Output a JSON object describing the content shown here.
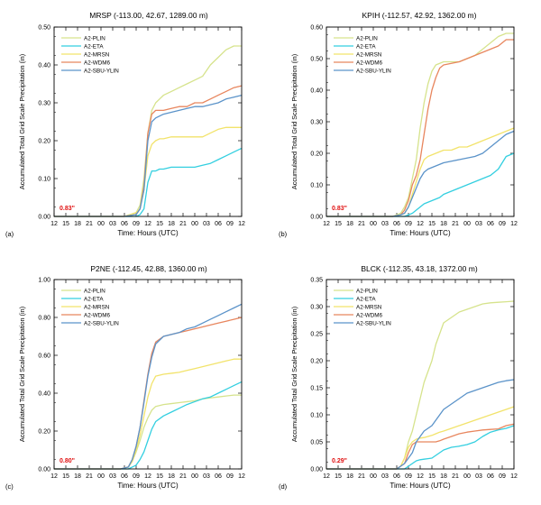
{
  "figure": {
    "xlabel": "Time: Hours (UTC)",
    "ylabel": "Accumulated Total Grid Scale Precipitation (in)",
    "x_tick_labels": [
      "12",
      "15",
      "18",
      "21",
      "00",
      "03",
      "06",
      "09",
      "12",
      "15",
      "18",
      "21",
      "00",
      "03",
      "06",
      "09",
      "12"
    ],
    "series_names": [
      "A2-PLIN",
      "A2-ETA",
      "A2-MRSN",
      "A2-WDM6",
      "A2-SBU-YLIN"
    ],
    "series_colors": [
      "#d6e38c",
      "#33cfe0",
      "#f2e36b",
      "#e8865e",
      "#5b93c9"
    ]
  },
  "chart_data": [
    {
      "type": "line",
      "panel_label": "(a)",
      "title": "MRSP (-113.00, 42.67, 1289.00 m)",
      "xlabel": "Time: Hours (UTC)",
      "ylabel": "Accumulated Total Grid Scale Precipitation (in)",
      "x": [
        0,
        6,
        12,
        18,
        21,
        22,
        23,
        24,
        25,
        26,
        27,
        28,
        30,
        32,
        34,
        36,
        38,
        40,
        42,
        44,
        46,
        48
      ],
      "ylim": [
        0,
        0.5
      ],
      "yticks": [
        "0.00",
        "0.10",
        "0.20",
        "0.30",
        "0.40",
        "0.50"
      ],
      "annotation": "0.83\"",
      "legend_position": "top-left",
      "series": [
        {
          "name": "A2-PLIN",
          "values": [
            0,
            0,
            0,
            0,
            0.01,
            0.03,
            0.1,
            0.22,
            0.28,
            0.3,
            0.31,
            0.32,
            0.33,
            0.34,
            0.35,
            0.36,
            0.37,
            0.4,
            0.42,
            0.44,
            0.45,
            0.45
          ]
        },
        {
          "name": "A2-ETA",
          "values": [
            0,
            0,
            0,
            0,
            0,
            0.005,
            0.02,
            0.09,
            0.12,
            0.12,
            0.125,
            0.125,
            0.13,
            0.13,
            0.13,
            0.13,
            0.135,
            0.14,
            0.15,
            0.16,
            0.17,
            0.18
          ]
        },
        {
          "name": "A2-MRSN",
          "values": [
            0,
            0,
            0,
            0,
            0.01,
            0.02,
            0.07,
            0.16,
            0.19,
            0.2,
            0.205,
            0.205,
            0.21,
            0.21,
            0.21,
            0.21,
            0.21,
            0.22,
            0.23,
            0.235,
            0.235,
            0.235
          ]
        },
        {
          "name": "A2-WDM6",
          "values": [
            0,
            0,
            0,
            0,
            0.005,
            0.02,
            0.08,
            0.22,
            0.27,
            0.28,
            0.28,
            0.28,
            0.285,
            0.29,
            0.29,
            0.3,
            0.3,
            0.31,
            0.32,
            0.33,
            0.34,
            0.345
          ]
        },
        {
          "name": "A2-SBU-YLIN",
          "values": [
            0,
            0,
            0,
            0,
            0.005,
            0.02,
            0.07,
            0.2,
            0.25,
            0.26,
            0.265,
            0.27,
            0.275,
            0.28,
            0.285,
            0.29,
            0.29,
            0.295,
            0.3,
            0.31,
            0.315,
            0.32
          ]
        }
      ]
    },
    {
      "type": "line",
      "panel_label": "(b)",
      "title": "KPIH (-112.57, 42.92, 1362.00 m)",
      "xlabel": "Time: Hours (UTC)",
      "ylabel": "Accumulated Total Grid Scale Precipitation (in)",
      "x": [
        0,
        6,
        12,
        17,
        19,
        20,
        21,
        22,
        23,
        24,
        25,
        26,
        27,
        28,
        29,
        30,
        32,
        34,
        36,
        38,
        40,
        42,
        44,
        46,
        48
      ],
      "ylim": [
        0,
        0.6
      ],
      "yticks": [
        "0.00",
        "0.10",
        "0.20",
        "0.30",
        "0.40",
        "0.50",
        "0.60"
      ],
      "annotation": "0.83\"",
      "legend_position": "top-left",
      "series": [
        {
          "name": "A2-PLIN",
          "values": [
            0,
            0,
            0,
            0,
            0.01,
            0.03,
            0.06,
            0.12,
            0.18,
            0.28,
            0.36,
            0.42,
            0.46,
            0.48,
            0.485,
            0.49,
            0.49,
            0.49,
            0.5,
            0.51,
            0.53,
            0.55,
            0.57,
            0.58,
            0.58
          ]
        },
        {
          "name": "A2-ETA",
          "values": [
            0,
            0,
            0,
            0,
            0,
            0,
            0.005,
            0.01,
            0.02,
            0.03,
            0.04,
            0.045,
            0.05,
            0.055,
            0.06,
            0.07,
            0.08,
            0.09,
            0.1,
            0.11,
            0.12,
            0.13,
            0.15,
            0.19,
            0.2
          ]
        },
        {
          "name": "A2-MRSN",
          "values": [
            0,
            0,
            0,
            0,
            0.005,
            0.01,
            0.03,
            0.07,
            0.11,
            0.15,
            0.18,
            0.19,
            0.195,
            0.2,
            0.205,
            0.21,
            0.21,
            0.22,
            0.22,
            0.23,
            0.24,
            0.25,
            0.26,
            0.27,
            0.28
          ]
        },
        {
          "name": "A2-WDM6",
          "values": [
            0,
            0,
            0,
            0,
            0.005,
            0.02,
            0.05,
            0.1,
            0.13,
            0.18,
            0.26,
            0.34,
            0.4,
            0.44,
            0.47,
            0.48,
            0.485,
            0.49,
            0.5,
            0.51,
            0.52,
            0.53,
            0.54,
            0.56,
            0.56
          ]
        },
        {
          "name": "A2-SBU-YLIN",
          "values": [
            0,
            0,
            0,
            0,
            0.005,
            0.01,
            0.03,
            0.06,
            0.09,
            0.12,
            0.14,
            0.15,
            0.155,
            0.16,
            0.165,
            0.17,
            0.175,
            0.18,
            0.185,
            0.19,
            0.2,
            0.22,
            0.24,
            0.26,
            0.27
          ]
        }
      ]
    },
    {
      "type": "line",
      "panel_label": "(c)",
      "title": "P2NE (-112.45, 42.88, 1360.00 m)",
      "xlabel": "Time: Hours (UTC)",
      "ylabel": "Accumulated Total Grid Scale Precipitation (in)",
      "x": [
        0,
        6,
        12,
        17,
        18,
        19,
        20,
        21,
        22,
        23,
        24,
        25,
        26,
        28,
        30,
        32,
        34,
        36,
        38,
        40,
        42,
        44,
        46,
        48
      ],
      "ylim": [
        0,
        1.0
      ],
      "yticks": [
        "0.00",
        "0.20",
        "0.40",
        "0.60",
        "0.80",
        "1.00"
      ],
      "annotation": "0.80\"",
      "legend_position": "top-left",
      "series": [
        {
          "name": "A2-PLIN",
          "values": [
            0,
            0,
            0,
            0,
            0.005,
            0.01,
            0.04,
            0.09,
            0.15,
            0.22,
            0.27,
            0.31,
            0.33,
            0.34,
            0.345,
            0.35,
            0.355,
            0.36,
            0.37,
            0.375,
            0.38,
            0.385,
            0.39,
            0.39
          ]
        },
        {
          "name": "A2-ETA",
          "values": [
            0,
            0,
            0,
            0,
            0,
            0,
            0.01,
            0.02,
            0.05,
            0.09,
            0.15,
            0.21,
            0.25,
            0.28,
            0.3,
            0.32,
            0.34,
            0.355,
            0.37,
            0.38,
            0.4,
            0.42,
            0.44,
            0.46
          ]
        },
        {
          "name": "A2-MRSN",
          "values": [
            0,
            0,
            0,
            0,
            0.005,
            0.01,
            0.04,
            0.1,
            0.18,
            0.28,
            0.38,
            0.45,
            0.49,
            0.5,
            0.505,
            0.51,
            0.52,
            0.53,
            0.54,
            0.55,
            0.56,
            0.57,
            0.58,
            0.58
          ]
        },
        {
          "name": "A2-WDM6",
          "values": [
            0,
            0,
            0,
            0,
            0.005,
            0.01,
            0.05,
            0.12,
            0.22,
            0.36,
            0.5,
            0.61,
            0.67,
            0.7,
            0.71,
            0.72,
            0.73,
            0.74,
            0.75,
            0.76,
            0.77,
            0.78,
            0.79,
            0.8
          ]
        },
        {
          "name": "A2-SBU-YLIN",
          "values": [
            0,
            0,
            0,
            0,
            0.005,
            0.01,
            0.05,
            0.12,
            0.22,
            0.35,
            0.49,
            0.59,
            0.66,
            0.7,
            0.71,
            0.72,
            0.74,
            0.75,
            0.77,
            0.79,
            0.81,
            0.83,
            0.85,
            0.87
          ]
        }
      ]
    },
    {
      "type": "line",
      "panel_label": "(d)",
      "title": "BLCK (-112.35, 43.18, 1372.00 m)",
      "xlabel": "Time: Hours (UTC)",
      "ylabel": "Accumulated Total Grid Scale Precipitation (in)",
      "x": [
        0,
        6,
        12,
        18,
        19,
        20,
        21,
        22,
        23,
        24,
        25,
        26,
        27,
        28,
        29,
        30,
        32,
        34,
        36,
        38,
        40,
        42,
        44,
        46,
        48
      ],
      "ylim": [
        0,
        0.35
      ],
      "yticks": [
        "0.00",
        "0.05",
        "0.10",
        "0.15",
        "0.20",
        "0.25",
        "0.30",
        "0.35"
      ],
      "annotation": "0.29\"",
      "legend_position": "top-left",
      "series": [
        {
          "name": "A2-PLIN",
          "values": [
            0,
            0,
            0,
            0,
            0.005,
            0.02,
            0.05,
            0.07,
            0.1,
            0.13,
            0.16,
            0.18,
            0.2,
            0.23,
            0.25,
            0.27,
            0.28,
            0.29,
            0.295,
            0.3,
            0.305,
            0.307,
            0.308,
            0.309,
            0.31
          ]
        },
        {
          "name": "A2-ETA",
          "values": [
            0,
            0,
            0,
            0,
            0,
            0,
            0.005,
            0.01,
            0.015,
            0.017,
            0.018,
            0.019,
            0.02,
            0.025,
            0.03,
            0.035,
            0.04,
            0.042,
            0.045,
            0.05,
            0.06,
            0.068,
            0.072,
            0.075,
            0.08
          ]
        },
        {
          "name": "A2-MRSN",
          "values": [
            0,
            0,
            0,
            0,
            0.005,
            0.02,
            0.04,
            0.05,
            0.055,
            0.057,
            0.058,
            0.06,
            0.062,
            0.065,
            0.068,
            0.07,
            0.075,
            0.08,
            0.085,
            0.09,
            0.095,
            0.1,
            0.105,
            0.11,
            0.115
          ]
        },
        {
          "name": "A2-WDM6",
          "values": [
            0,
            0,
            0,
            0,
            0.005,
            0.01,
            0.03,
            0.045,
            0.05,
            0.05,
            0.05,
            0.05,
            0.05,
            0.05,
            0.052,
            0.055,
            0.06,
            0.065,
            0.068,
            0.07,
            0.072,
            0.073,
            0.074,
            0.08,
            0.083
          ]
        },
        {
          "name": "A2-SBU-YLIN",
          "values": [
            0,
            0,
            0,
            0,
            0.005,
            0.01,
            0.02,
            0.03,
            0.05,
            0.06,
            0.07,
            0.075,
            0.08,
            0.09,
            0.1,
            0.11,
            0.12,
            0.13,
            0.14,
            0.145,
            0.15,
            0.155,
            0.16,
            0.163,
            0.165
          ]
        }
      ]
    }
  ]
}
